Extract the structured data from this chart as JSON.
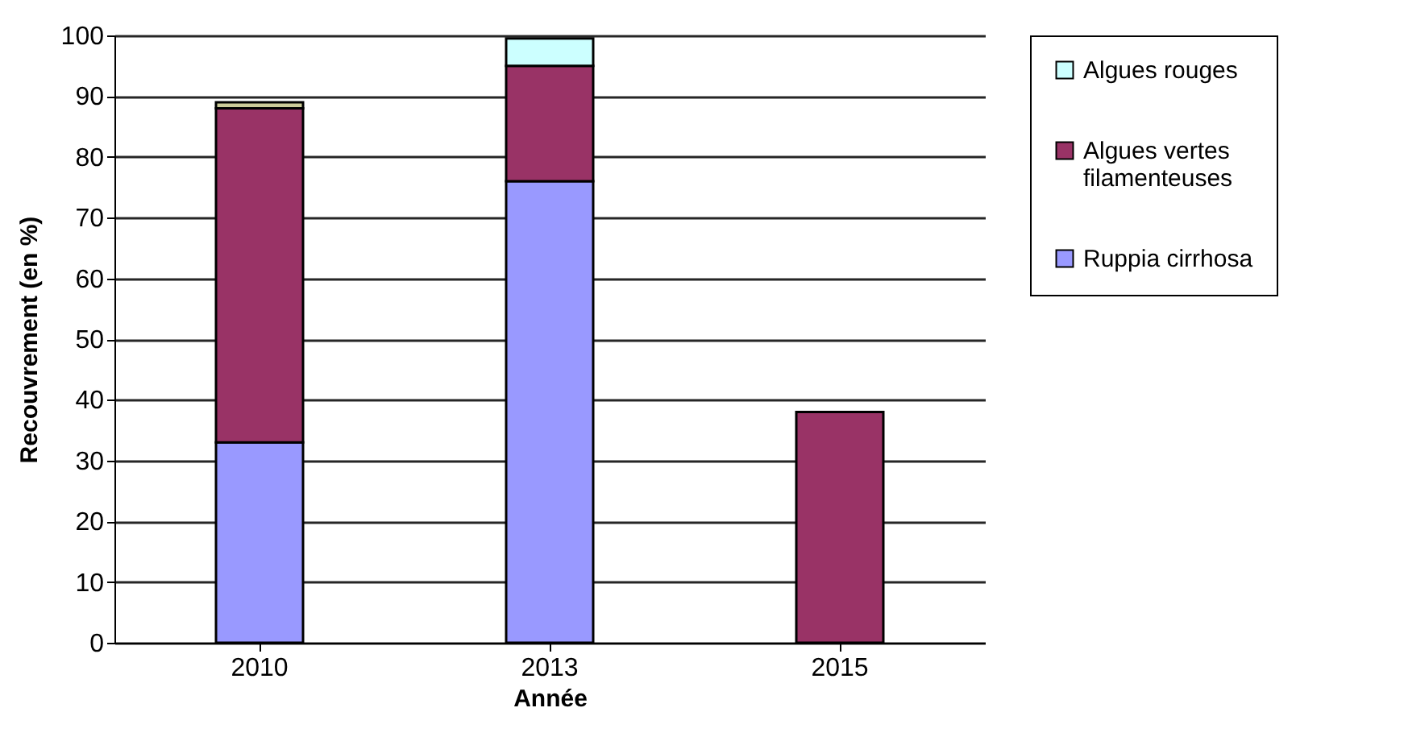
{
  "chart_data": {
    "type": "bar",
    "stacked": true,
    "xlabel": "Année",
    "ylabel": "Recouvrement (en %)",
    "categories": [
      "2010",
      "2013",
      "2015"
    ],
    "series": [
      {
        "name": "Ruppia cirrhosa",
        "color": "#9999ff",
        "values": [
          33,
          76,
          null
        ]
      },
      {
        "name": "Algues vertes filamenteuses",
        "color": "#993366",
        "values": [
          55,
          19,
          38
        ]
      },
      {
        "color": "#cccc99",
        "values": [
          1,
          null,
          null
        ]
      },
      {
        "name": "Algues rouges",
        "color": "#ccffff",
        "values": [
          null,
          4.5,
          null
        ]
      }
    ],
    "ylim": [
      0,
      100
    ],
    "yticks": [
      0,
      10,
      20,
      30,
      40,
      50,
      60,
      70,
      80,
      90,
      100
    ],
    "grid": "y",
    "legend": "right"
  }
}
